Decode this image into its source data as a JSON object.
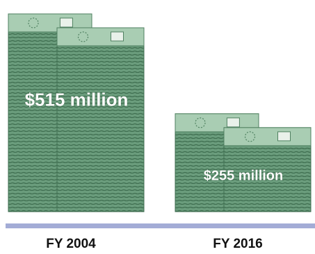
{
  "chart_data": {
    "type": "pictograph",
    "categories": [
      "FY 2004",
      "FY 2016"
    ],
    "values": [
      515,
      255
    ],
    "value_labels": [
      "$515 million",
      "$255 million"
    ],
    "color": "#5e9171"
  }
}
